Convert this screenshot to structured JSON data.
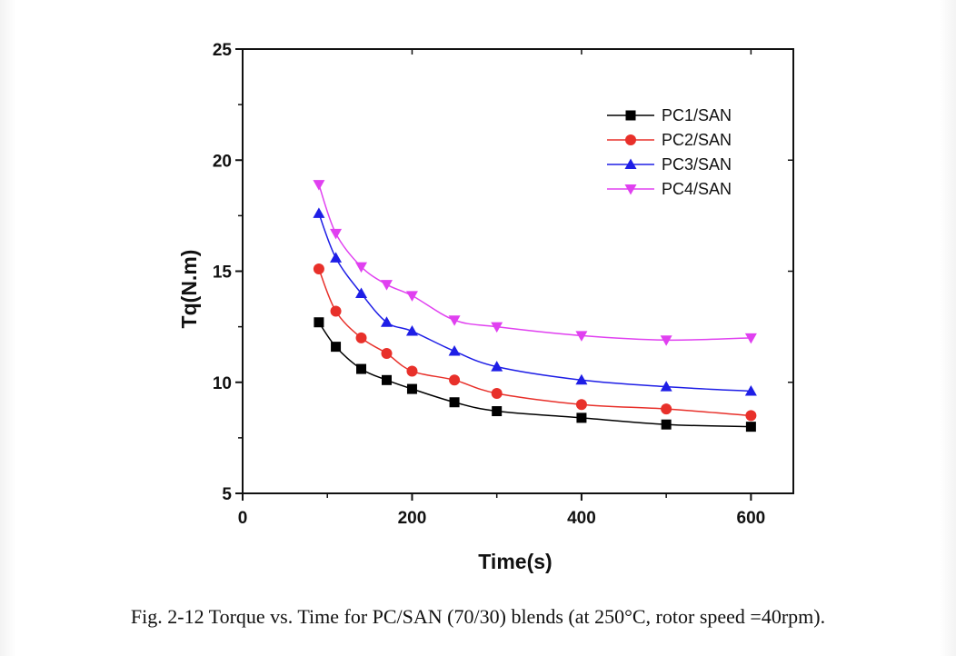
{
  "caption": "Fig. 2-12 Torque vs. Time for PC/SAN (70/30) blends (at 250°C, rotor speed =40rpm).",
  "chart_data": {
    "type": "line",
    "xlabel": "Time(s)",
    "ylabel": "Tq(N.m)",
    "xlim": [
      0,
      650
    ],
    "ylim": [
      5,
      25
    ],
    "xticks": [
      0,
      200,
      400,
      600
    ],
    "yticks": [
      5,
      10,
      15,
      20,
      25
    ],
    "grid": false,
    "legend_position": "top-right",
    "x": [
      90,
      110,
      140,
      170,
      200,
      250,
      300,
      400,
      500,
      600
    ],
    "series": [
      {
        "name": "PC1/SAN",
        "color": "#000000",
        "marker": "square",
        "values": [
          12.7,
          11.6,
          10.6,
          10.1,
          9.7,
          9.1,
          8.7,
          8.4,
          8.1,
          8.0
        ]
      },
      {
        "name": "PC2/SAN",
        "color": "#e8302a",
        "marker": "circle",
        "values": [
          15.1,
          13.2,
          12.0,
          11.3,
          10.5,
          10.1,
          9.5,
          9.0,
          8.8,
          8.5
        ]
      },
      {
        "name": "PC3/SAN",
        "color": "#1e1ee6",
        "marker": "triangle-up",
        "values": [
          17.6,
          15.6,
          14.0,
          12.7,
          12.3,
          11.4,
          10.7,
          10.1,
          9.8,
          9.6
        ]
      },
      {
        "name": "PC4/SAN",
        "color": "#e040f0",
        "marker": "triangle-down",
        "values": [
          18.9,
          16.7,
          15.2,
          14.4,
          13.9,
          12.8,
          12.5,
          12.1,
          11.9,
          12.0
        ]
      }
    ]
  }
}
